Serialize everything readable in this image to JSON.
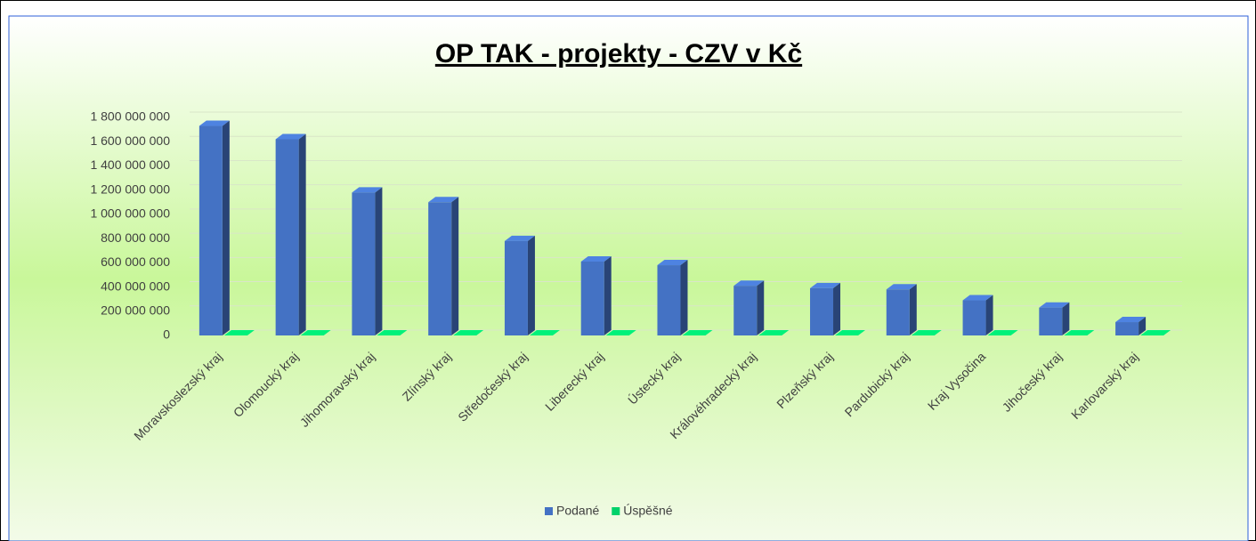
{
  "chart_data": {
    "type": "bar3d",
    "title": "OP TAK - projekty - CZV v Kč",
    "categories": [
      "Moravskoslezský kraj",
      "Olomoucký kraj",
      "Jihomoravský kraj",
      "Zlínský kraj",
      "Středočeský kraj",
      "Liberecký kraj",
      "Ústecký kraj",
      "Královéhradecký kraj",
      "Plzeňský kraj",
      "Pardubický kraj",
      "Kraj Vysočina",
      "Jihočeský kraj",
      "Karlovarský kraj"
    ],
    "series": [
      {
        "name": "Podané",
        "color": "#4472c4",
        "values": [
          1730000000,
          1620000000,
          1180000000,
          1100000000,
          780000000,
          610000000,
          580000000,
          410000000,
          390000000,
          380000000,
          290000000,
          230000000,
          110000000
        ]
      },
      {
        "name": "Úspěšné",
        "color": "#00d26a",
        "values": [
          0,
          0,
          0,
          0,
          0,
          0,
          0,
          0,
          0,
          0,
          0,
          0,
          0
        ]
      }
    ],
    "ylim": [
      0,
      1800000000
    ],
    "yticks": [
      0,
      {
        "value": 200000000,
        "label": "200 000 000"
      },
      {
        "value": 400000000,
        "label": "400 000 000"
      },
      {
        "value": 600000000,
        "label": "600 000 000"
      },
      {
        "value": 800000000,
        "label": "800 000 000"
      },
      {
        "value": 1000000000,
        "label": "1 000 000 000"
      },
      {
        "value": 1200000000,
        "label": "1 200 000 000"
      },
      {
        "value": 1400000000,
        "label": "1 400 000 000"
      },
      {
        "value": 1600000000,
        "label": "1 600 000 000"
      },
      {
        "value": 1800000000,
        "label": "1 800 000 000"
      }
    ],
    "grid": true,
    "legend": "bottom"
  }
}
